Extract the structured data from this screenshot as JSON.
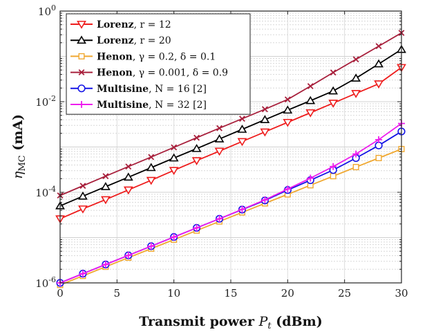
{
  "chart_data": {
    "type": "line",
    "title": "",
    "xlabel": "Transmit power P_t (dBm)",
    "ylabel": "η_MC (mA)",
    "xscale": "linear",
    "yscale": "log",
    "xlim": [
      0,
      30
    ],
    "ylim": [
      1e-06,
      1
    ],
    "xticks": [
      0,
      5,
      10,
      15,
      20,
      25,
      30
    ],
    "xtick_labels": [
      "0",
      "5",
      "10",
      "15",
      "20",
      "25",
      "30"
    ],
    "yticks": [
      1e-06,
      0.0001,
      0.01,
      1
    ],
    "ytick_labels": [
      {
        "base": "10",
        "exp": "-6"
      },
      {
        "base": "10",
        "exp": "-4"
      },
      {
        "base": "10",
        "exp": "-2"
      },
      {
        "base": "10",
        "exp": "0"
      }
    ],
    "grid": true,
    "legend_position": "top-left",
    "x": [
      0,
      2,
      4,
      6,
      8,
      10,
      12,
      14,
      16,
      18,
      20,
      22,
      24,
      26,
      28,
      30
    ],
    "series": [
      {
        "name": "Lorenz, r = 12",
        "legend_bold": "Lorenz",
        "legend_rest": ", r = 12",
        "color": "#ee1c1c",
        "marker": "triangle-down",
        "values": [
          2.6e-05,
          4.3e-05,
          6.9e-05,
          0.000113,
          0.000184,
          0.000305,
          0.0005,
          0.00081,
          0.00132,
          0.00215,
          0.0035,
          0.0057,
          0.0093,
          0.0152,
          0.0248,
          0.057
        ]
      },
      {
        "name": "Lorenz, r = 20",
        "legend_bold": "Lorenz",
        "legend_rest": ", r = 20",
        "color": "#000000",
        "marker": "triangle-up",
        "values": [
          5e-05,
          8.2e-05,
          0.000133,
          0.000215,
          0.00035,
          0.00057,
          0.00092,
          0.0015,
          0.00245,
          0.004,
          0.0065,
          0.0105,
          0.0172,
          0.033,
          0.068,
          0.142
        ]
      },
      {
        "name": "Henon, γ = 0.2, δ = 0.1",
        "legend_bold": "Henon",
        "legend_rest": ", γ = 0.2, δ = 0.1",
        "color": "#f0a830",
        "marker": "square",
        "values": [
          9e-07,
          1.43e-06,
          2.27e-06,
          3.6e-06,
          5.7e-06,
          9e-06,
          1.43e-05,
          2.27e-05,
          3.6e-05,
          5.7e-05,
          9e-05,
          0.000143,
          0.000227,
          0.00036,
          0.00057,
          0.0009
        ]
      },
      {
        "name": "Henon, γ = 0.001, δ = 0.9",
        "legend_bold": "Henon",
        "legend_rest": ", γ = 0.001, δ = 0.9",
        "color": "#a8203c",
        "marker": "x",
        "values": [
          8.5e-05,
          0.000139,
          0.000227,
          0.00037,
          0.0006,
          0.00098,
          0.0016,
          0.0026,
          0.0042,
          0.0068,
          0.0112,
          0.022,
          0.044,
          0.086,
          0.168,
          0.33
        ]
      },
      {
        "name": "Multisine, N = 16 [2]",
        "legend_bold": "Multisine",
        "legend_rest": ", N = 16 [2]",
        "color": "#1414e6",
        "marker": "circle",
        "values": [
          1e-06,
          1.6e-06,
          2.55e-06,
          4.05e-06,
          6.45e-06,
          1.03e-05,
          1.64e-05,
          2.6e-05,
          4.15e-05,
          6.6e-05,
          0.000112,
          0.000185,
          0.00031,
          0.00057,
          0.00108,
          0.0022
        ]
      },
      {
        "name": "Multisine, N = 32 [2]",
        "legend_bold": "Multisine",
        "legend_rest": ", N = 32 [2]",
        "color": "#ee1cee",
        "marker": "plus",
        "values": [
          1e-06,
          1.6e-06,
          2.55e-06,
          4.05e-06,
          6.45e-06,
          1.03e-05,
          1.64e-05,
          2.6e-05,
          4.2e-05,
          6.8e-05,
          0.000118,
          0.000205,
          0.00037,
          0.0007,
          0.00145,
          0.0033
        ]
      }
    ]
  }
}
